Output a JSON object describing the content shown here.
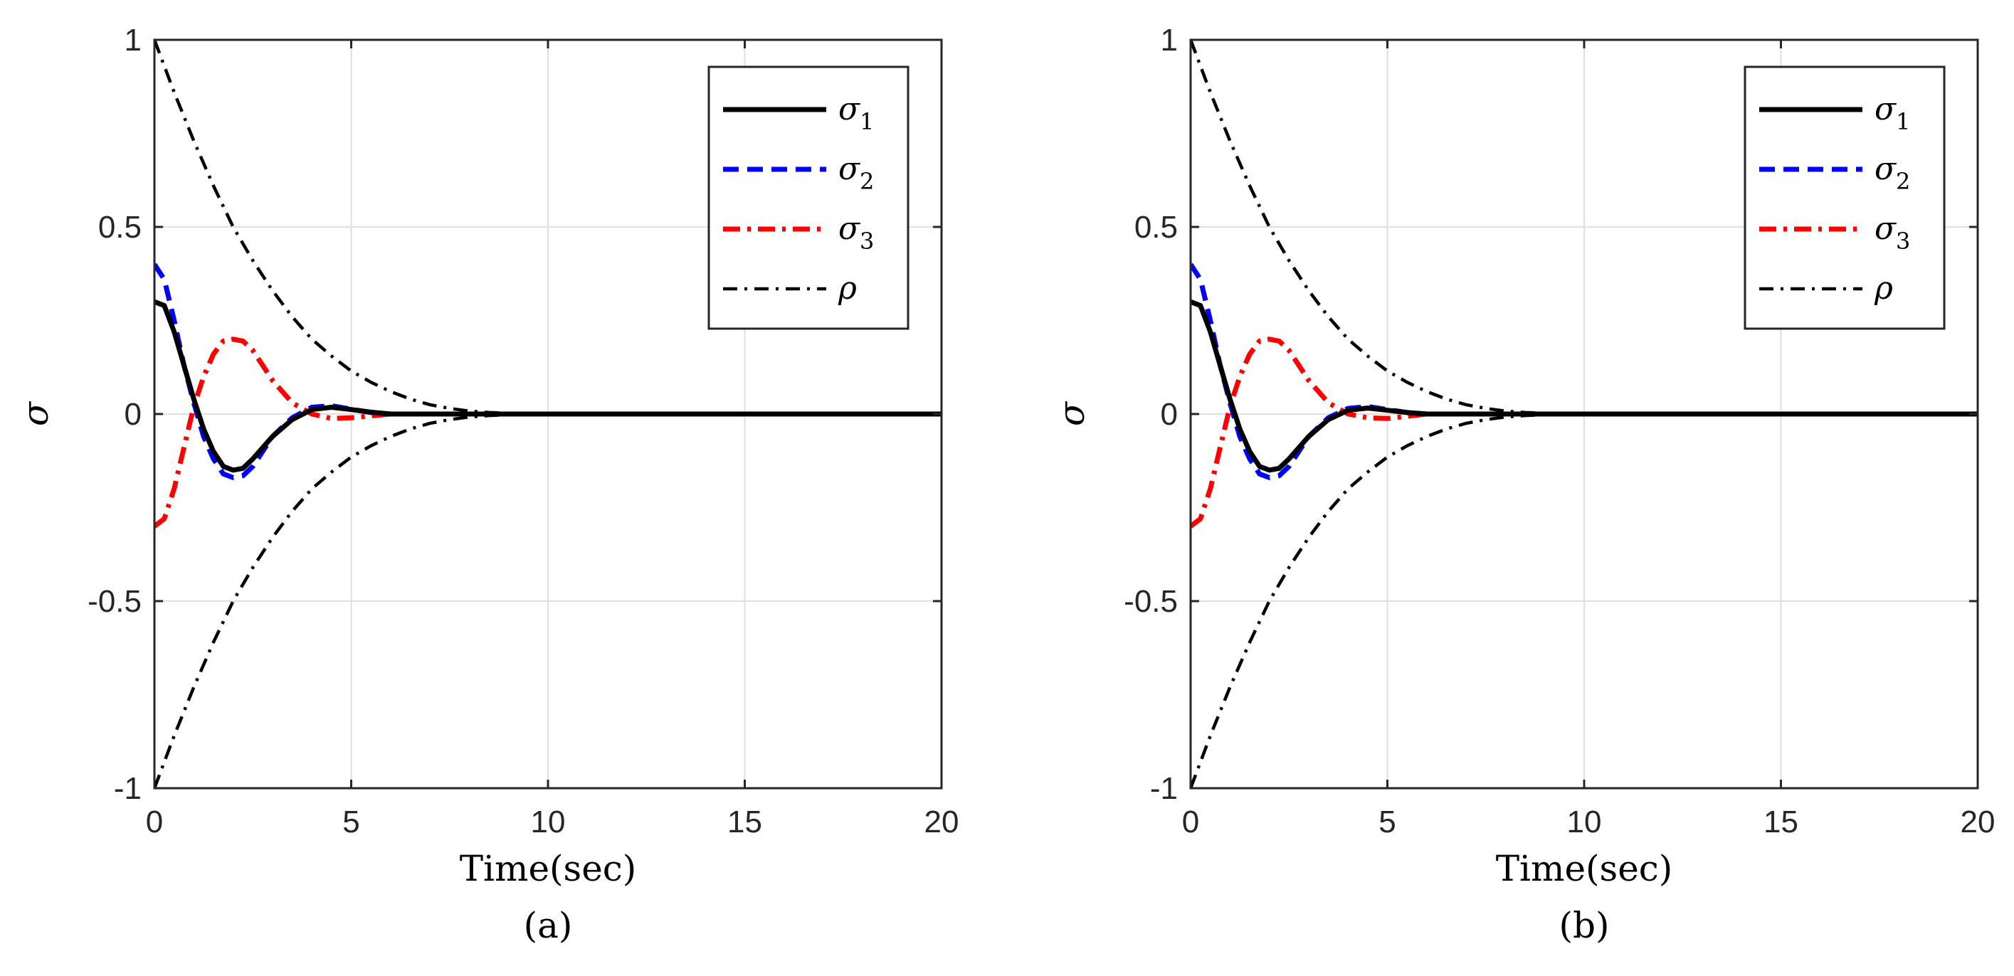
{
  "chart_data": [
    {
      "type": "line",
      "caption": "(a)",
      "xlabel": "Time(sec)",
      "ylabel": "σ",
      "xlim": [
        0,
        20
      ],
      "ylim": [
        -1,
        1
      ],
      "xticks": [
        0,
        5,
        10,
        15,
        20
      ],
      "yticks": [
        -1,
        -0.5,
        0,
        0.5,
        1
      ],
      "xtick_labels": [
        "0",
        "5",
        "10",
        "15",
        "20"
      ],
      "ytick_labels": [
        "-1",
        "-0.5",
        "0",
        "0.5",
        "1"
      ],
      "grid": true,
      "legend_position": "top-right",
      "series": [
        {
          "name": "σ1",
          "symbol": "σ",
          "sub": "1",
          "color": "#000000",
          "style": "solid",
          "x": [
            0,
            0.25,
            0.5,
            0.75,
            1,
            1.25,
            1.5,
            1.75,
            2,
            2.25,
            2.5,
            2.75,
            3,
            3.5,
            4,
            4.5,
            5,
            5.5,
            6,
            7,
            8,
            9,
            10,
            15,
            20
          ],
          "y": [
            0.3,
            0.29,
            0.22,
            0.13,
            0.04,
            -0.04,
            -0.1,
            -0.14,
            -0.15,
            -0.145,
            -0.12,
            -0.09,
            -0.06,
            -0.015,
            0.012,
            0.018,
            0.012,
            0.005,
            0.0,
            0,
            0,
            0,
            0,
            0,
            0
          ]
        },
        {
          "name": "σ2",
          "symbol": "σ",
          "sub": "2",
          "color": "#0000ff",
          "style": "dashed",
          "x": [
            0,
            0.25,
            0.5,
            0.75,
            1,
            1.25,
            1.5,
            1.75,
            2,
            2.25,
            2.5,
            2.75,
            3,
            3.5,
            4,
            4.5,
            5,
            5.5,
            6,
            7,
            8,
            9,
            10,
            15,
            20
          ],
          "y": [
            0.4,
            0.36,
            0.25,
            0.13,
            0.03,
            -0.06,
            -0.12,
            -0.16,
            -0.17,
            -0.165,
            -0.14,
            -0.1,
            -0.06,
            -0.01,
            0.018,
            0.022,
            0.013,
            0.004,
            0.0,
            0,
            0,
            0,
            0,
            0,
            0
          ]
        },
        {
          "name": "σ3",
          "symbol": "σ",
          "sub": "3",
          "color": "#ff0000",
          "style": "dashdot",
          "x": [
            0,
            0.25,
            0.5,
            0.75,
            1,
            1.25,
            1.5,
            1.75,
            2,
            2.25,
            2.5,
            2.75,
            3,
            3.5,
            4,
            4.5,
            5,
            5.5,
            6,
            7,
            8,
            9,
            10,
            15,
            20
          ],
          "y": [
            -0.3,
            -0.28,
            -0.2,
            -0.09,
            0.02,
            0.1,
            0.16,
            0.195,
            0.2,
            0.195,
            0.17,
            0.13,
            0.09,
            0.03,
            0.0,
            -0.012,
            -0.01,
            -0.005,
            0.0,
            0,
            0,
            0,
            0,
            0,
            0
          ]
        },
        {
          "name": "ρ",
          "symbol": "ρ",
          "sub": "",
          "color": "#000000",
          "style": "dashdot-thin",
          "x": [
            0,
            0.5,
            1,
            1.5,
            2,
            2.5,
            3,
            3.5,
            4,
            4.5,
            5,
            5.5,
            6,
            6.5,
            7,
            7.5,
            8,
            8.5,
            9,
            9.5,
            10,
            15,
            20
          ],
          "y": [
            1,
            0.86,
            0.73,
            0.61,
            0.5,
            0.41,
            0.33,
            0.26,
            0.2,
            0.155,
            0.115,
            0.085,
            0.06,
            0.04,
            0.025,
            0.015,
            0.008,
            0.004,
            0.002,
            0.001,
            0,
            0,
            0
          ]
        },
        {
          "name": "-ρ",
          "symbol": "",
          "sub": "",
          "color": "#000000",
          "style": "dashdot-thin",
          "legend": false,
          "x": [
            0,
            0.5,
            1,
            1.5,
            2,
            2.5,
            3,
            3.5,
            4,
            4.5,
            5,
            5.5,
            6,
            6.5,
            7,
            7.5,
            8,
            8.5,
            9,
            9.5,
            10,
            15,
            20
          ],
          "y": [
            -1,
            -0.86,
            -0.73,
            -0.61,
            -0.5,
            -0.41,
            -0.33,
            -0.26,
            -0.2,
            -0.155,
            -0.115,
            -0.085,
            -0.06,
            -0.04,
            -0.025,
            -0.015,
            -0.008,
            -0.004,
            -0.002,
            -0.001,
            0,
            0,
            0
          ]
        }
      ]
    },
    {
      "type": "line",
      "caption": "(b)",
      "xlabel": "Time(sec)",
      "ylabel": "σ",
      "xlim": [
        0,
        20
      ],
      "ylim": [
        -1,
        1
      ],
      "xticks": [
        0,
        5,
        10,
        15,
        20
      ],
      "yticks": [
        -1,
        -0.5,
        0,
        0.5,
        1
      ],
      "xtick_labels": [
        "0",
        "5",
        "10",
        "15",
        "20"
      ],
      "ytick_labels": [
        "-1",
        "-0.5",
        "0",
        "0.5",
        "1"
      ],
      "grid": true,
      "legend_position": "top-right",
      "series": [
        {
          "name": "σ1",
          "symbol": "σ",
          "sub": "1",
          "color": "#000000",
          "style": "solid",
          "x": [
            0,
            0.25,
            0.5,
            0.75,
            1,
            1.25,
            1.5,
            1.75,
            2,
            2.25,
            2.5,
            2.75,
            3,
            3.5,
            4,
            4.5,
            5,
            5.5,
            6,
            7,
            8,
            9,
            10,
            15,
            20
          ],
          "y": [
            0.3,
            0.29,
            0.22,
            0.13,
            0.04,
            -0.04,
            -0.1,
            -0.14,
            -0.15,
            -0.145,
            -0.12,
            -0.09,
            -0.06,
            -0.015,
            0.01,
            0.016,
            0.01,
            0.004,
            0.0,
            0,
            0,
            0,
            0,
            0,
            0
          ]
        },
        {
          "name": "σ2",
          "symbol": "σ",
          "sub": "2",
          "color": "#0000ff",
          "style": "dashed",
          "x": [
            0,
            0.25,
            0.5,
            0.75,
            1,
            1.25,
            1.5,
            1.75,
            2,
            2.25,
            2.5,
            2.75,
            3,
            3.5,
            4,
            4.5,
            5,
            5.5,
            6,
            7,
            8,
            9,
            10,
            15,
            20
          ],
          "y": [
            0.4,
            0.36,
            0.25,
            0.13,
            0.03,
            -0.06,
            -0.12,
            -0.16,
            -0.17,
            -0.165,
            -0.14,
            -0.1,
            -0.06,
            -0.01,
            0.015,
            0.02,
            0.012,
            0.004,
            0.0,
            0,
            0,
            0,
            0,
            0,
            0
          ]
        },
        {
          "name": "σ3",
          "symbol": "σ",
          "sub": "3",
          "color": "#ff0000",
          "style": "dashdot",
          "x": [
            0,
            0.25,
            0.5,
            0.75,
            1,
            1.25,
            1.5,
            1.75,
            2,
            2.25,
            2.5,
            2.75,
            3,
            3.5,
            4,
            4.5,
            5,
            5.5,
            6,
            7,
            8,
            9,
            10,
            15,
            20
          ],
          "y": [
            -0.3,
            -0.28,
            -0.2,
            -0.09,
            0.02,
            0.1,
            0.16,
            0.195,
            0.2,
            0.195,
            0.17,
            0.13,
            0.09,
            0.03,
            0.0,
            -0.01,
            -0.012,
            -0.006,
            0.0,
            0,
            0,
            0,
            0,
            0,
            0
          ]
        },
        {
          "name": "ρ",
          "symbol": "ρ",
          "sub": "",
          "color": "#000000",
          "style": "dashdot-thin",
          "x": [
            0,
            0.5,
            1,
            1.5,
            2,
            2.5,
            3,
            3.5,
            4,
            4.5,
            5,
            5.5,
            6,
            6.5,
            7,
            7.5,
            8,
            8.5,
            9,
            9.5,
            10,
            15,
            20
          ],
          "y": [
            1,
            0.86,
            0.73,
            0.61,
            0.5,
            0.41,
            0.33,
            0.26,
            0.2,
            0.155,
            0.115,
            0.085,
            0.06,
            0.04,
            0.025,
            0.015,
            0.008,
            0.004,
            0.002,
            0.001,
            0,
            0,
            0
          ]
        },
        {
          "name": "-ρ",
          "symbol": "",
          "sub": "",
          "color": "#000000",
          "style": "dashdot-thin",
          "legend": false,
          "x": [
            0,
            0.5,
            1,
            1.5,
            2,
            2.5,
            3,
            3.5,
            4,
            4.5,
            5,
            5.5,
            6,
            6.5,
            7,
            7.5,
            8,
            8.5,
            9,
            9.5,
            10,
            15,
            20
          ],
          "y": [
            -1,
            -0.86,
            -0.73,
            -0.61,
            -0.5,
            -0.41,
            -0.33,
            -0.26,
            -0.2,
            -0.155,
            -0.115,
            -0.085,
            -0.06,
            -0.04,
            -0.025,
            -0.015,
            -0.008,
            -0.004,
            -0.002,
            -0.001,
            0,
            0,
            0
          ]
        }
      ]
    }
  ]
}
